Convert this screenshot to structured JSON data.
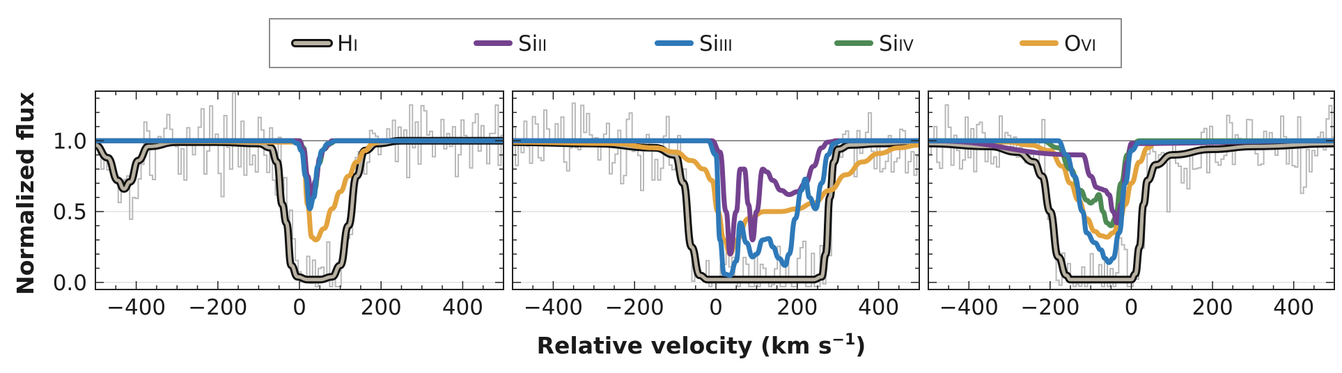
{
  "chart_data": {
    "type": "line",
    "xlabel": "Relative velocity (km s",
    "xlabel_superscript": "−1",
    "xlabel_close": ")",
    "ylabel": "Normalized flux",
    "xlim": [
      -500,
      500
    ],
    "ylim": [
      -0.05,
      1.35
    ],
    "x_ticks": [
      -400,
      -200,
      0,
      200,
      400
    ],
    "x_tick_labels": [
      "−400",
      "−200",
      "0",
      "200",
      "400"
    ],
    "y_ticks": [
      0.0,
      0.5,
      1.0
    ],
    "y_tick_labels": [
      "0.0",
      "0.5",
      "1.0"
    ],
    "legend": [
      {
        "element": "H",
        "ion": "I",
        "color": "#b9b2a3",
        "outline": "#111111"
      },
      {
        "element": "Si",
        "ion": "II",
        "color": "#74428f"
      },
      {
        "element": "Si",
        "ion": "III",
        "color": "#2e79b9"
      },
      {
        "element": "Si",
        "ion": "IV",
        "color": "#4e8a55"
      },
      {
        "element": "O",
        "ion": "VI",
        "color": "#e3a33d"
      }
    ],
    "data_color": "#b8b8b8",
    "panels": [
      {
        "name": "panel-1",
        "series": [
          {
            "name": "H I",
            "color": "#b9b2a3",
            "x": [
              -500,
              -470,
              -445,
              -430,
              -415,
              -395,
              -370,
              -300,
              -200,
              -100,
              -70,
              -55,
              -42,
              -32,
              -20,
              -5,
              20,
              50,
              80,
              100,
              120,
              140,
              160,
              190,
              250,
              500
            ],
            "y": [
              0.97,
              0.88,
              0.72,
              0.66,
              0.71,
              0.86,
              0.96,
              0.99,
              0.99,
              0.98,
              0.95,
              0.85,
              0.55,
              0.42,
              0.12,
              0.04,
              0.02,
              0.02,
              0.04,
              0.12,
              0.4,
              0.75,
              0.93,
              0.98,
              1.0,
              1.0
            ]
          },
          {
            "name": "Si II",
            "color": "#74428f",
            "x": [
              -500,
              0,
              10,
              20,
              30,
              40,
              50,
              60,
              70,
              80,
              100,
              500
            ],
            "y": [
              1.0,
              1.0,
              0.94,
              0.75,
              0.6,
              0.72,
              0.88,
              0.94,
              0.97,
              1.0,
              1.0,
              1.0
            ]
          },
          {
            "name": "Si III",
            "color": "#2e79b9",
            "x": [
              -500,
              -20,
              -5,
              5,
              15,
              25,
              35,
              45,
              55,
              70,
              90,
              500
            ],
            "y": [
              1.0,
              1.0,
              0.98,
              0.93,
              0.75,
              0.52,
              0.6,
              0.82,
              0.93,
              0.98,
              1.0,
              1.0
            ]
          },
          {
            "name": "Si IV",
            "color": "#4e8a55",
            "x": [
              -500,
              0,
              10,
              20,
              28,
              38,
              48,
              60,
              75,
              90,
              500
            ],
            "y": [
              1.0,
              1.0,
              0.95,
              0.75,
              0.56,
              0.66,
              0.84,
              0.94,
              0.98,
              1.0,
              1.0
            ]
          },
          {
            "name": "O VI",
            "color": "#e3a33d",
            "x": [
              -500,
              0,
              10,
              20,
              30,
              40,
              60,
              80,
              100,
              120,
              140,
              160,
              180,
              200,
              500
            ],
            "y": [
              1.0,
              0.99,
              0.9,
              0.55,
              0.32,
              0.3,
              0.38,
              0.52,
              0.64,
              0.75,
              0.85,
              0.93,
              0.98,
              1.0,
              1.0
            ]
          }
        ]
      },
      {
        "name": "panel-2",
        "series": [
          {
            "name": "H I",
            "color": "#b9b2a3",
            "x": [
              -500,
              -300,
              -150,
              -100,
              -80,
              -60,
              -40,
              -20,
              0,
              100,
              200,
              240,
              260,
              270,
              280,
              290,
              300,
              330,
              400,
              500
            ],
            "y": [
              0.99,
              0.98,
              0.95,
              0.9,
              0.7,
              0.25,
              0.05,
              0.02,
              0.02,
              0.02,
              0.02,
              0.02,
              0.04,
              0.2,
              0.6,
              0.85,
              0.94,
              0.97,
              0.98,
              0.99
            ]
          },
          {
            "name": "Si II",
            "color": "#74428f",
            "x": [
              -500,
              -10,
              10,
              25,
              35,
              50,
              60,
              70,
              80,
              90,
              100,
              115,
              125,
              140,
              160,
              180,
              200,
              220,
              240,
              260,
              275,
              300,
              500
            ],
            "y": [
              1.0,
              1.0,
              0.92,
              0.5,
              0.2,
              0.5,
              0.8,
              0.8,
              0.55,
              0.3,
              0.5,
              0.8,
              0.78,
              0.72,
              0.65,
              0.62,
              0.64,
              0.7,
              0.82,
              0.95,
              0.99,
              1.0,
              1.0
            ]
          },
          {
            "name": "Si III",
            "color": "#2e79b9",
            "x": [
              -500,
              -20,
              0,
              10,
              20,
              35,
              50,
              60,
              75,
              90,
              100,
              115,
              130,
              140,
              155,
              170,
              180,
              195,
              210,
              220,
              230,
              245,
              260,
              275,
              290,
              310,
              500
            ],
            "y": [
              1.0,
              1.0,
              0.9,
              0.3,
              0.06,
              0.05,
              0.15,
              0.42,
              0.28,
              0.18,
              0.2,
              0.3,
              0.31,
              0.25,
              0.17,
              0.12,
              0.2,
              0.45,
              0.65,
              0.73,
              0.6,
              0.52,
              0.7,
              0.9,
              0.98,
              1.0,
              1.0
            ]
          },
          {
            "name": "O VI",
            "color": "#e3a33d",
            "x": [
              -500,
              -250,
              -150,
              -100,
              -60,
              -30,
              -10,
              5,
              20,
              35,
              50,
              80,
              120,
              160,
              200,
              240,
              280,
              320,
              360,
              400,
              450,
              500
            ],
            "y": [
              0.99,
              0.98,
              0.95,
              0.92,
              0.86,
              0.8,
              0.72,
              0.5,
              0.3,
              0.2,
              0.3,
              0.45,
              0.5,
              0.5,
              0.52,
              0.56,
              0.65,
              0.76,
              0.85,
              0.91,
              0.95,
              0.97
            ]
          }
        ]
      },
      {
        "name": "panel-3",
        "series": [
          {
            "name": "H I",
            "color": "#b9b2a3",
            "x": [
              -500,
              -350,
              -280,
              -240,
              -220,
              -200,
              -180,
              -160,
              -150,
              -100,
              -50,
              0,
              10,
              20,
              30,
              40,
              60,
              100,
              200,
              300,
              500
            ],
            "y": [
              0.98,
              0.96,
              0.92,
              0.85,
              0.75,
              0.5,
              0.18,
              0.05,
              0.02,
              0.02,
              0.02,
              0.02,
              0.06,
              0.25,
              0.55,
              0.72,
              0.83,
              0.9,
              0.94,
              0.96,
              0.98
            ]
          },
          {
            "name": "Si II",
            "color": "#74428f",
            "x": [
              -500,
              -120,
              -100,
              -85,
              -75,
              -65,
              -55,
              -45,
              -35,
              -25,
              -10,
              0,
              500
            ],
            "y": [
              1.0,
              0.9,
              0.75,
              0.67,
              0.66,
              0.65,
              0.62,
              0.5,
              0.42,
              0.55,
              0.85,
              0.98,
              1.0
            ]
          },
          {
            "name": "Si III",
            "color": "#2e79b9",
            "x": [
              -500,
              -180,
              -160,
              -140,
              -120,
              -110,
              -90,
              -75,
              -65,
              -55,
              -45,
              -30,
              -15,
              0,
              20,
              500
            ],
            "y": [
              1.0,
              1.0,
              0.9,
              0.75,
              0.5,
              0.35,
              0.28,
              0.23,
              0.17,
              0.14,
              0.17,
              0.35,
              0.7,
              0.93,
              0.99,
              1.0
            ]
          },
          {
            "name": "Si IV",
            "color": "#4e8a55",
            "x": [
              -500,
              -220,
              -180,
              -150,
              -125,
              -110,
              -100,
              -90,
              -80,
              -70,
              -60,
              -50,
              -40,
              -25,
              -10,
              0,
              20,
              500
            ],
            "y": [
              1.0,
              1.0,
              0.95,
              0.8,
              0.65,
              0.58,
              0.56,
              0.58,
              0.62,
              0.5,
              0.42,
              0.4,
              0.45,
              0.7,
              0.9,
              0.97,
              1.0,
              1.0
            ]
          },
          {
            "name": "O VI",
            "color": "#e3a33d",
            "x": [
              -500,
              -300,
              -250,
              -200,
              -170,
              -150,
              -130,
              -110,
              -90,
              -75,
              -60,
              -45,
              -30,
              -15,
              0,
              20,
              40,
              60,
              500
            ],
            "y": [
              1.0,
              0.99,
              0.97,
              0.93,
              0.82,
              0.7,
              0.58,
              0.45,
              0.36,
              0.33,
              0.32,
              0.35,
              0.42,
              0.55,
              0.7,
              0.85,
              0.95,
              0.99,
              1.0
            ]
          }
        ]
      }
    ]
  }
}
